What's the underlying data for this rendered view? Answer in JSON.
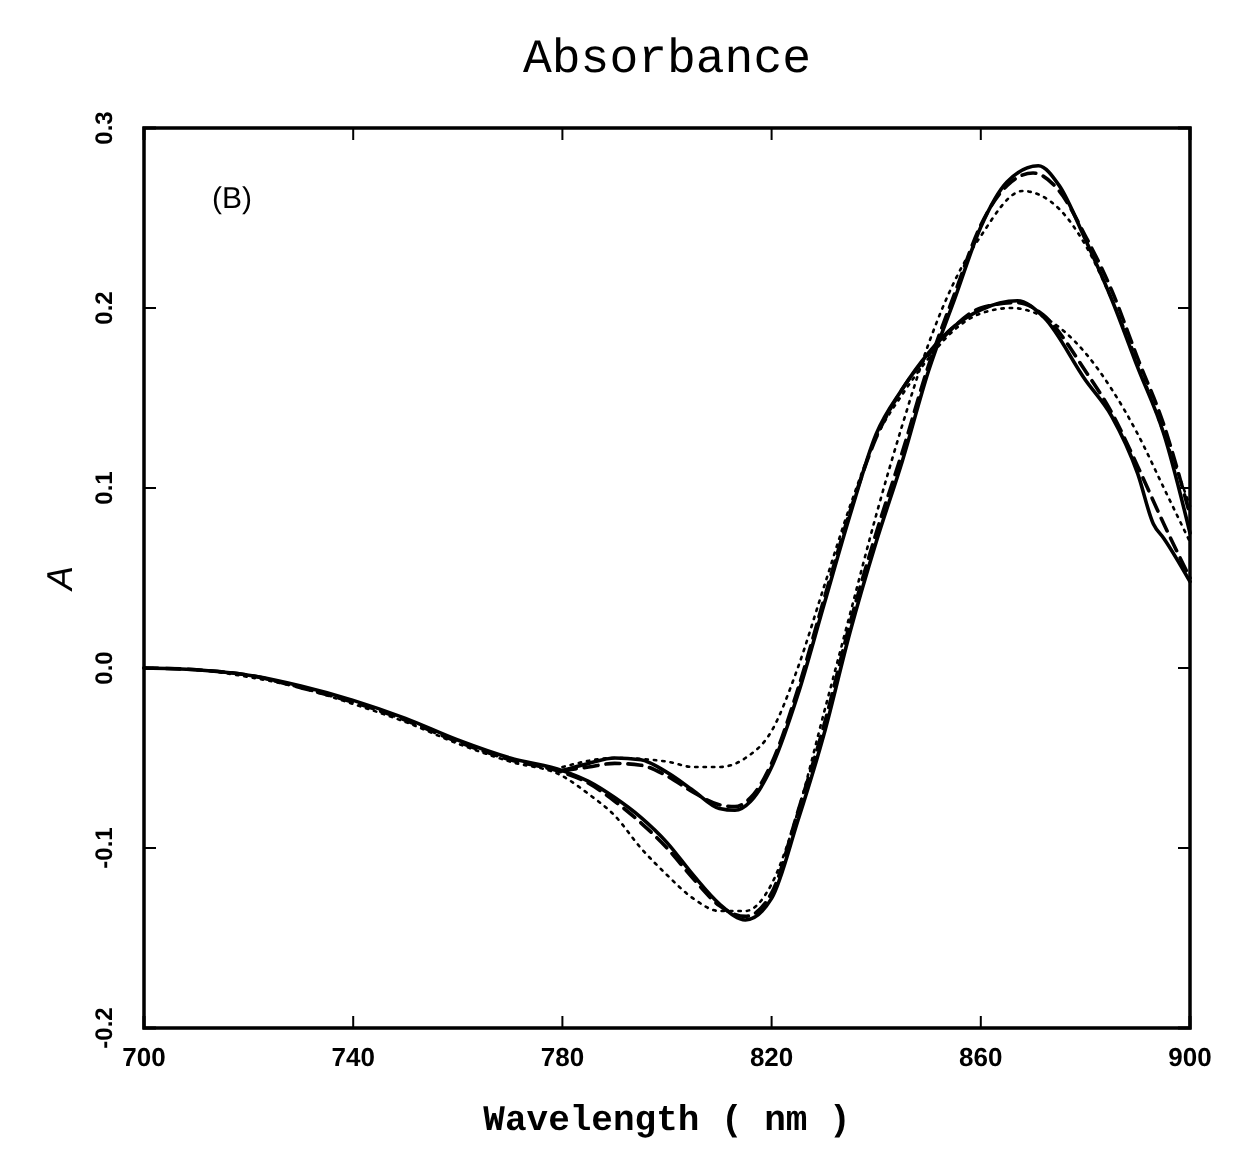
{
  "chart_data": {
    "type": "line",
    "title": "Absorbance",
    "xlabel": "Wavelength ( nm )",
    "ylabel": "A",
    "annotations": [
      "(B)"
    ],
    "xlim": [
      700,
      900
    ],
    "xticks": [
      700,
      740,
      780,
      820,
      860,
      900
    ],
    "ylim": [
      -0.2,
      0.3
    ],
    "yticks": [
      {
        "value": -0.2,
        "label": "-0.2"
      },
      {
        "value": -0.1,
        "label": "-0.1"
      },
      {
        "value": 0,
        "label": "0.0"
      },
      {
        "value": 0.1,
        "label": "0.1"
      },
      {
        "value": 0.2,
        "label": "0.2"
      },
      {
        "value": 0.3,
        "label": "0.3"
      }
    ],
    "marker": "none",
    "series": [
      {
        "color": "#000000",
        "line_style": "solid",
        "x": [
          700,
          710,
          720,
          730,
          740,
          750,
          760,
          770,
          780,
          785,
          790,
          795,
          800,
          805,
          810,
          815,
          820,
          825,
          830,
          835,
          840,
          845,
          850,
          855,
          860,
          865,
          871,
          875,
          880,
          885,
          890,
          895,
          900
        ],
        "values": [
          0,
          -0.001,
          -0.004,
          -0.01,
          -0.018,
          -0.028,
          -0.04,
          -0.05,
          -0.057,
          -0.063,
          -0.072,
          -0.083,
          -0.097,
          -0.115,
          -0.131,
          -0.14,
          -0.128,
          -0.085,
          -0.037,
          0.02,
          0.07,
          0.115,
          0.165,
          0.205,
          0.245,
          0.27,
          0.279,
          0.268,
          0.238,
          0.205,
          0.167,
          0.13,
          0.075
        ]
      },
      {
        "color": "#000000",
        "line_style": "dashed",
        "x": [
          700,
          710,
          720,
          730,
          740,
          750,
          760,
          770,
          780,
          785,
          790,
          795,
          800,
          805,
          810,
          815,
          820,
          825,
          830,
          835,
          840,
          845,
          850,
          855,
          860,
          865,
          870,
          875,
          880,
          885,
          890,
          895,
          900
        ],
        "values": [
          0,
          -0.001,
          -0.004,
          -0.011,
          -0.019,
          -0.029,
          -0.041,
          -0.051,
          -0.058,
          -0.064,
          -0.074,
          -0.086,
          -0.1,
          -0.117,
          -0.132,
          -0.138,
          -0.125,
          -0.08,
          -0.032,
          0.025,
          0.075,
          0.12,
          0.168,
          0.208,
          0.246,
          0.268,
          0.275,
          0.265,
          0.24,
          0.21,
          0.172,
          0.135,
          0.085
        ]
      },
      {
        "color": "#000000",
        "line_style": "dotted",
        "x": [
          700,
          710,
          720,
          730,
          740,
          750,
          760,
          770,
          780,
          785,
          790,
          795,
          800,
          805,
          810,
          815,
          820,
          825,
          830,
          835,
          840,
          845,
          850,
          855,
          860,
          868,
          875,
          880,
          885,
          890,
          895,
          900
        ],
        "values": [
          0,
          -0.001,
          -0.005,
          -0.011,
          -0.02,
          -0.03,
          -0.042,
          -0.052,
          -0.06,
          -0.07,
          -0.082,
          -0.1,
          -0.115,
          -0.128,
          -0.135,
          -0.135,
          -0.12,
          -0.08,
          -0.025,
          0.03,
          0.085,
          0.135,
          0.18,
          0.215,
          0.24,
          0.265,
          0.255,
          0.235,
          0.205,
          0.17,
          0.13,
          0.09
        ]
      },
      {
        "color": "#000000",
        "line_style": "solid",
        "x": [
          780,
          785,
          790,
          795,
          800,
          805,
          810,
          813,
          816,
          820,
          825,
          830,
          835,
          840,
          845,
          850,
          855,
          860,
          867,
          872,
          880,
          885,
          890,
          893,
          895,
          900
        ],
        "values": [
          -0.057,
          -0.053,
          -0.05,
          -0.051,
          -0.058,
          -0.068,
          -0.078,
          -0.079,
          -0.074,
          -0.055,
          -0.015,
          0.035,
          0.085,
          0.13,
          0.155,
          0.175,
          0.19,
          0.199,
          0.204,
          0.195,
          0.16,
          0.14,
          0.108,
          0.08,
          0.072,
          0.048
        ]
      },
      {
        "color": "#000000",
        "line_style": "dashed",
        "x": [
          780,
          785,
          790,
          795,
          800,
          805,
          810,
          813,
          816,
          820,
          825,
          830,
          835,
          840,
          845,
          850,
          855,
          860,
          867,
          872,
          880,
          885,
          890,
          895,
          900
        ],
        "values": [
          -0.057,
          -0.055,
          -0.053,
          -0.054,
          -0.06,
          -0.069,
          -0.076,
          -0.077,
          -0.072,
          -0.053,
          -0.012,
          0.038,
          0.087,
          0.128,
          0.155,
          0.174,
          0.19,
          0.2,
          0.203,
          0.196,
          0.165,
          0.142,
          0.112,
          0.08,
          0.05
        ]
      },
      {
        "color": "#000000",
        "line_style": "dotted",
        "x": [
          780,
          790,
          800,
          805,
          810,
          815,
          820,
          825,
          830,
          835,
          840,
          845,
          850,
          855,
          860,
          866,
          872,
          880,
          885,
          890,
          895,
          900
        ],
        "values": [
          -0.055,
          -0.05,
          -0.052,
          -0.055,
          -0.055,
          -0.05,
          -0.035,
          0,
          0.045,
          0.09,
          0.128,
          0.152,
          0.172,
          0.188,
          0.197,
          0.2,
          0.195,
          0.175,
          0.155,
          0.13,
          0.1,
          0.07
        ]
      }
    ]
  }
}
